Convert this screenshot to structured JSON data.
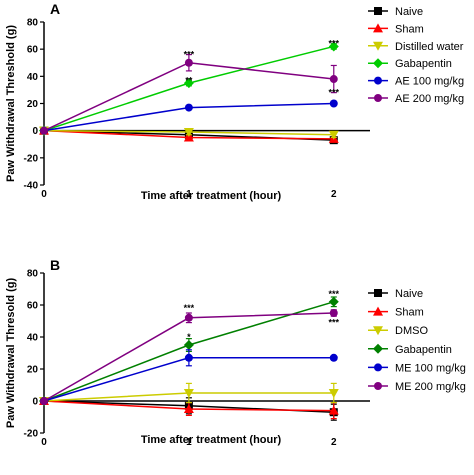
{
  "chart_data": [
    {
      "panel_label": "A",
      "type": "line",
      "xlabel": "Time after treatment (hour)",
      "ylabel": "Paw Withdrawal Threshold (g)",
      "x": [
        0,
        1,
        2
      ],
      "xticks": [
        "0",
        "1",
        "2"
      ],
      "xlim": [
        0,
        2.25
      ],
      "ylim": [
        -40,
        80
      ],
      "yticks": [
        -40,
        -20,
        0,
        20,
        40,
        60,
        80
      ],
      "grid": false,
      "legend_placement": "right",
      "series": [
        {
          "name": "Naive",
          "color": "#000000",
          "marker": "square",
          "values": [
            0,
            -3,
            -7
          ],
          "errors": [
            0,
            1,
            1
          ]
        },
        {
          "name": "Sham",
          "color": "#ff0000",
          "marker": "triangle-up",
          "values": [
            0,
            -5,
            -6
          ],
          "errors": [
            0,
            1,
            1
          ]
        },
        {
          "name": "Distilled water",
          "color": "#cccc00",
          "marker": "triangle-down",
          "values": [
            0,
            -1,
            -3
          ],
          "errors": [
            0,
            2,
            2
          ]
        },
        {
          "name": "Gabapentin",
          "color": "#00cc00",
          "marker": "diamond",
          "values": [
            0,
            35,
            62
          ],
          "errors": [
            0,
            2,
            2
          ]
        },
        {
          "name": "AE 100 mg/kg",
          "color": "#0000cc",
          "marker": "circle",
          "values": [
            0,
            17,
            20
          ],
          "errors": [
            0,
            1,
            1
          ]
        },
        {
          "name": "AE 200 mg/kg",
          "color": "#800080",
          "marker": "circle",
          "values": [
            0,
            50,
            38
          ],
          "errors": [
            0,
            6,
            10
          ]
        }
      ],
      "annotations": [
        {
          "text": "***",
          "x": 1,
          "y": 56
        },
        {
          "text": "**",
          "x": 1,
          "y": 37
        },
        {
          "text": "***",
          "x": 2,
          "y": 64
        },
        {
          "text": "***",
          "x": 2,
          "y": 28
        }
      ]
    },
    {
      "panel_label": "B",
      "type": "line",
      "xlabel": "Time after treatment (hour)",
      "ylabel": "Paw Withdrawal Thresold (g)",
      "x": [
        0,
        1,
        2
      ],
      "xticks": [
        "0",
        "1",
        "2"
      ],
      "xlim": [
        0,
        2.25
      ],
      "ylim": [
        -20,
        80
      ],
      "yticks": [
        -20,
        0,
        20,
        40,
        60,
        80
      ],
      "grid": false,
      "legend_placement": "right",
      "series": [
        {
          "name": "Naive",
          "color": "#000000",
          "marker": "square",
          "values": [
            0,
            -3,
            -7
          ],
          "errors": [
            0,
            5,
            5
          ]
        },
        {
          "name": "Sham",
          "color": "#ff0000",
          "marker": "triangle-up",
          "values": [
            0,
            -5,
            -6
          ],
          "errors": [
            0,
            4,
            5
          ]
        },
        {
          "name": "DMSO",
          "color": "#cccc00",
          "marker": "triangle-down",
          "values": [
            0,
            5,
            5
          ],
          "errors": [
            0,
            6,
            6
          ]
        },
        {
          "name": "Gabapentin",
          "color": "#008000",
          "marker": "diamond",
          "values": [
            0,
            35,
            62
          ],
          "errors": [
            0,
            4,
            3
          ]
        },
        {
          "name": "ME 100 mg/kg",
          "color": "#0000cc",
          "marker": "circle",
          "values": [
            0,
            27,
            27
          ],
          "errors": [
            0,
            5,
            0
          ]
        },
        {
          "name": "ME 200 mg/kg",
          "color": "#800080",
          "marker": "circle",
          "values": [
            0,
            52,
            55
          ],
          "errors": [
            0,
            3,
            2
          ]
        }
      ],
      "annotations": [
        {
          "text": "***",
          "x": 1,
          "y": 58
        },
        {
          "text": "*",
          "x": 1,
          "y": 40
        },
        {
          "text": "***",
          "x": 2,
          "y": 67
        },
        {
          "text": "***",
          "x": 2,
          "y": 49
        }
      ]
    }
  ]
}
